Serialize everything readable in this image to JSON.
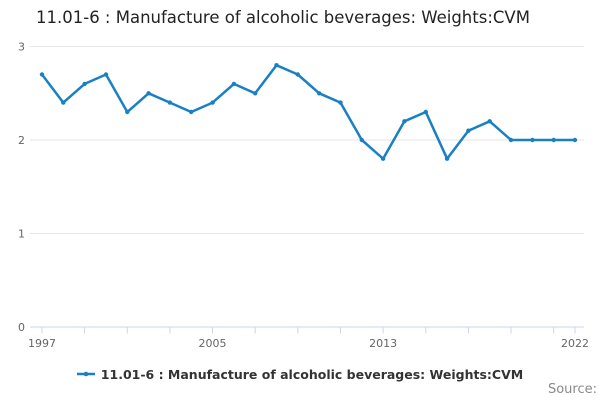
{
  "header": {
    "title": "11.01-6 : Manufacture of alcoholic beverages: Weights:CVM"
  },
  "legend": {
    "label": "11.01-6 : Manufacture of alcoholic beverages: Weights:CVM"
  },
  "footer": {
    "source_label": "Source:"
  },
  "colors": {
    "line": "#1a80c4",
    "marker": "#1a80c4",
    "grid": "#e6e6e6",
    "axis": "#ccd6eb",
    "tick": "#ccd6eb",
    "axis_label": "#666666",
    "title_text": "#222222",
    "legend_text": "#333333",
    "source_text": "#8a8a8a"
  },
  "chart_data": {
    "type": "line",
    "title": "11.01-6 : Manufacture of alcoholic beverages: Weights:CVM",
    "x": [
      1997,
      1998,
      1999,
      2000,
      2001,
      2002,
      2003,
      2004,
      2005,
      2006,
      2007,
      2008,
      2009,
      2010,
      2011,
      2012,
      2013,
      2014,
      2015,
      2016,
      2017,
      2018,
      2019,
      2020,
      2021,
      2022
    ],
    "series": [
      {
        "name": "11.01-6 : Manufacture of alcoholic beverages: Weights:CVM",
        "values": [
          2.7,
          2.4,
          2.6,
          2.7,
          2.3,
          2.5,
          2.4,
          2.3,
          2.4,
          2.6,
          2.5,
          2.8,
          2.7,
          2.5,
          2.4,
          2.0,
          1.8,
          2.2,
          2.3,
          1.8,
          2.1,
          2.2,
          2.0,
          2.0,
          2.0,
          2.0
        ]
      }
    ],
    "xlabel": "",
    "ylabel": "",
    "ylim": [
      0,
      3
    ],
    "yticks": [
      0,
      1,
      2,
      3
    ],
    "xticks": [
      1997,
      1999,
      2001,
      2003,
      2005,
      2007,
      2009,
      2011,
      2013,
      2015,
      2017,
      2019,
      2021,
      2022
    ],
    "xtick_labels": [
      "1997",
      "2005",
      "2013",
      "2022"
    ],
    "grid": true,
    "markers": true,
    "legend_position": "bottom"
  }
}
